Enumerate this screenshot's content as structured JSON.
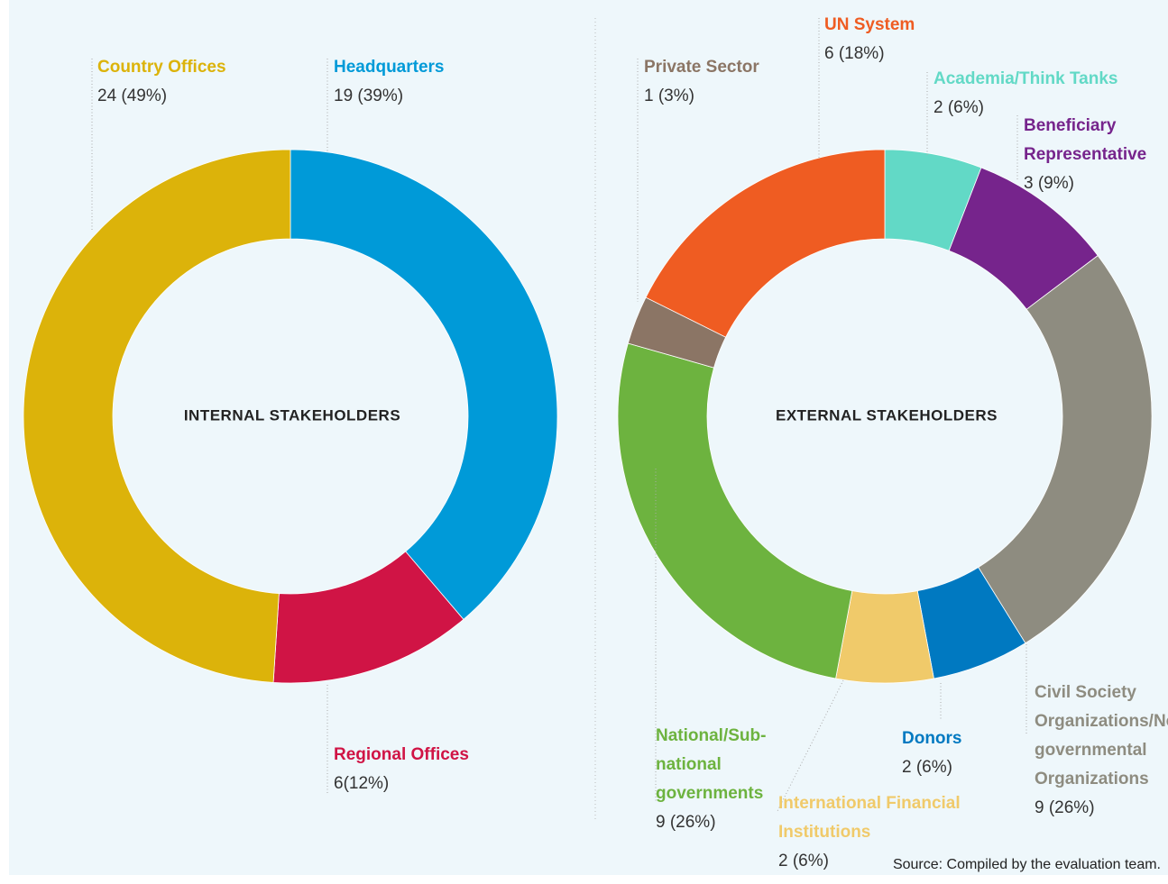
{
  "chart_data": [
    {
      "type": "donut",
      "title": "INTERNAL STAKEHOLDERS",
      "categories": [
        "Headquarters",
        "Regional Offices",
        "Country Offices"
      ],
      "values": [
        19,
        6,
        24
      ],
      "value_labels": [
        "19 (39%)",
        "6(12%)",
        "24 (49%)"
      ],
      "colors": [
        "#009ad8",
        "#d01445",
        "#dcb30a"
      ]
    },
    {
      "type": "donut",
      "title": "EXTERNAL STAKEHOLDERS",
      "categories": [
        "Academia/Think Tanks",
        "Beneficiary Representative",
        "Civil Society Organizations/Non-governmental Organizations",
        "Donors",
        "International Financial Institutions",
        "National/Sub-national governments",
        "Private Sector",
        "UN System"
      ],
      "values": [
        2,
        3,
        9,
        2,
        2,
        9,
        1,
        6
      ],
      "value_labels": [
        "2 (6%)",
        "3 (9%)",
        "9 (26%)",
        "2 (6%)",
        "2 (6%)",
        "9 (26%)",
        "1 (3%)",
        "6 (18%)"
      ],
      "colors": [
        "#62d9c6",
        "#76248c",
        "#8e8c80",
        "#0079c1",
        "#f0ca6a",
        "#6db33f",
        "#8b7565",
        "#ef5c22"
      ]
    }
  ],
  "source": "Source: Compiled by the evaluation team."
}
